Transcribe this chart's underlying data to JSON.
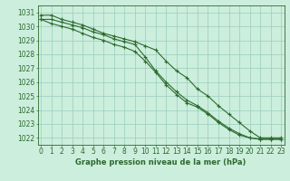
{
  "x": [
    0,
    1,
    2,
    3,
    4,
    5,
    6,
    7,
    8,
    9,
    10,
    11,
    12,
    13,
    14,
    15,
    16,
    17,
    18,
    19,
    20,
    21,
    22,
    23
  ],
  "line1": [
    1030.8,
    1030.8,
    1030.5,
    1030.3,
    1030.1,
    1029.8,
    1029.5,
    1029.3,
    1029.1,
    1028.9,
    1028.6,
    1028.3,
    1027.5,
    1026.8,
    1026.3,
    1025.5,
    1025.0,
    1024.3,
    1023.7,
    1023.1,
    1022.5,
    1022.0,
    1022.0,
    1022.0
  ],
  "line2": [
    1030.5,
    1030.5,
    1030.3,
    1030.1,
    1029.9,
    1029.6,
    1029.4,
    1029.1,
    1028.9,
    1028.7,
    1027.8,
    1026.8,
    1026.0,
    1025.3,
    1024.7,
    1024.3,
    1023.8,
    1023.2,
    1022.7,
    1022.3,
    1022.0,
    1021.9,
    1021.9,
    1021.9
  ],
  "line3": [
    1030.5,
    1030.2,
    1030.0,
    1029.8,
    1029.5,
    1029.2,
    1029.0,
    1028.7,
    1028.5,
    1028.2,
    1027.5,
    1026.7,
    1025.8,
    1025.1,
    1024.5,
    1024.2,
    1023.7,
    1023.1,
    1022.6,
    1022.2,
    1022.0,
    1021.9,
    1021.9,
    1021.9
  ],
  "line_color": "#2d6a2d",
  "bg_color": "#cceedd",
  "grid_color": "#99ccbb",
  "xlabel": "Graphe pression niveau de la mer (hPa)",
  "ylim": [
    1021.5,
    1031.5
  ],
  "xlim": [
    -0.3,
    23.3
  ],
  "yticks": [
    1022,
    1023,
    1024,
    1025,
    1026,
    1027,
    1028,
    1029,
    1030,
    1031
  ],
  "xticks": [
    0,
    1,
    2,
    3,
    4,
    5,
    6,
    7,
    8,
    9,
    10,
    11,
    12,
    13,
    14,
    15,
    16,
    17,
    18,
    19,
    20,
    21,
    22,
    23
  ],
  "marker": "+",
  "marker_size": 3,
  "linewidth": 0.8,
  "tick_fontsize": 5.5,
  "xlabel_fontsize": 6.0
}
